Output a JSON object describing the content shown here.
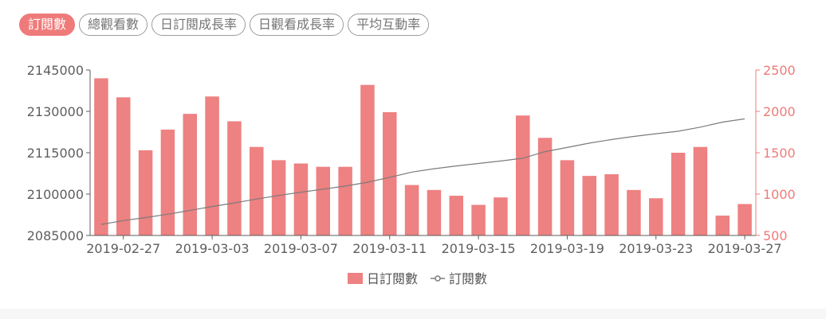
{
  "tabs": [
    {
      "label": "訂閱數",
      "active": true
    },
    {
      "label": "總觀看數",
      "active": false
    },
    {
      "label": "日訂閱成長率",
      "active": false
    },
    {
      "label": "日觀看成長率",
      "active": false
    },
    {
      "label": "平均互動率",
      "active": false
    }
  ],
  "colors": {
    "bar": "#ee8181",
    "line": "#7b7b7b",
    "right_axis": "#ee7b7a",
    "left_axis": "#5e5e5e",
    "tab_active": "#ee7b7a"
  },
  "chart_data": {
    "type": "bar+line",
    "x": [
      "2019-02-26",
      "2019-02-27",
      "2019-02-28",
      "2019-03-01",
      "2019-03-02",
      "2019-03-03",
      "2019-03-04",
      "2019-03-05",
      "2019-03-06",
      "2019-03-07",
      "2019-03-08",
      "2019-03-09",
      "2019-03-10",
      "2019-03-11",
      "2019-03-12",
      "2019-03-13",
      "2019-03-14",
      "2019-03-15",
      "2019-03-16",
      "2019-03-17",
      "2019-03-18",
      "2019-03-19",
      "2019-03-20",
      "2019-03-21",
      "2019-03-22",
      "2019-03-23",
      "2019-03-24",
      "2019-03-25",
      "2019-03-26",
      "2019-03-27"
    ],
    "x_tick_labels": [
      "2019-02-27",
      "2019-03-03",
      "2019-03-07",
      "2019-03-11",
      "2019-03-15",
      "2019-03-19",
      "2019-03-23",
      "2019-03-27"
    ],
    "series": [
      {
        "name": "日訂閱數",
        "type": "bar",
        "axis": "right",
        "values": [
          2400,
          2170,
          1530,
          1780,
          1970,
          2180,
          1880,
          1570,
          1410,
          1370,
          1330,
          1330,
          2320,
          1990,
          1110,
          1050,
          980,
          870,
          960,
          1950,
          1680,
          1410,
          1220,
          1240,
          1050,
          950,
          1500,
          1570,
          740,
          880
        ]
      },
      {
        "name": "訂閱數",
        "type": "line",
        "axis": "left",
        "values": [
          2089000,
          2090400,
          2091500,
          2092700,
          2094100,
          2095500,
          2096800,
          2098200,
          2099500,
          2100700,
          2101800,
          2102900,
          2104300,
          2106100,
          2108000,
          2109200,
          2110200,
          2111100,
          2112000,
          2113000,
          2115400,
          2116900,
          2118500,
          2119800,
          2120900,
          2121900,
          2122800,
          2124300,
          2126100,
          2127300
        ]
      }
    ],
    "y_left": {
      "min": 2085000,
      "max": 2145000,
      "ticks": [
        "2085000",
        "2100000",
        "2115000",
        "2130000",
        "2145000"
      ]
    },
    "y_right": {
      "min": 500,
      "max": 2500,
      "ticks": [
        "500",
        "1000",
        "1500",
        "2000",
        "2500"
      ]
    },
    "legend": [
      "日訂閱數",
      "訂閱數"
    ],
    "legend_position": "bottom-center",
    "grid": false
  }
}
